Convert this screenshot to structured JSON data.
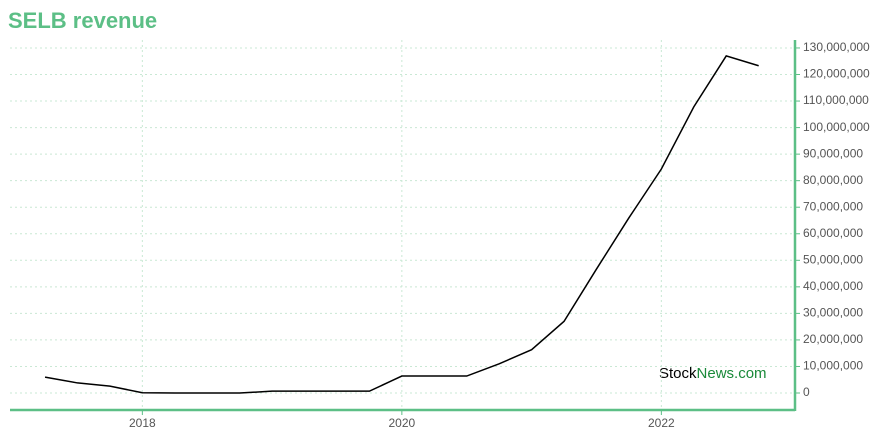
{
  "chart_data": {
    "type": "line",
    "title": "SELB revenue",
    "x": [
      2017.25,
      2017.5,
      2017.75,
      2018,
      2018.25,
      2018.5,
      2018.75,
      2019,
      2019.25,
      2019.5,
      2019.75,
      2020,
      2020.25,
      2020.5,
      2020.75,
      2021,
      2021.25,
      2021.5,
      2021.75,
      2022,
      2022.25,
      2022.5,
      2022.75
    ],
    "series": [
      {
        "color": "#000000",
        "values": [
          6000000,
          3800000,
          2600000,
          100000,
          0,
          0,
          0,
          700000,
          700000,
          700000,
          700000,
          6400000,
          6400000,
          6400000,
          11000000,
          16300000,
          27000000,
          46700000,
          66000000,
          84400000,
          107800000,
          127000000,
          123300000
        ]
      }
    ],
    "xlim": [
      2016.98,
      2023.03
    ],
    "xticks": [
      2018,
      2020,
      2022
    ],
    "ylim": [
      -6400000,
      133000000
    ],
    "yticks": [
      0,
      {
        "value": 10000000,
        "label": "10,000,000"
      },
      {
        "value": 20000000,
        "label": "20,000,000"
      },
      {
        "value": 30000000,
        "label": "30,000,000"
      },
      {
        "value": 40000000,
        "label": "40,000,000"
      },
      {
        "value": 50000000,
        "label": "50,000,000"
      },
      {
        "value": 60000000,
        "label": "60,000,000"
      },
      {
        "value": 70000000,
        "label": "70,000,000"
      },
      {
        "value": 80000000,
        "label": "80,000,000"
      },
      {
        "value": 90000000,
        "label": "90,000,000"
      },
      {
        "value": 100000000,
        "label": "100,000,000"
      },
      {
        "value": 110000000,
        "label": "110,000,000"
      },
      {
        "value": 120000000,
        "label": "120,000,000"
      },
      {
        "value": 130000000,
        "label": "130,000,000"
      }
    ],
    "grid": true,
    "axis_color": "#5cbf86",
    "watermark": [
      "Stock",
      "News.com"
    ]
  }
}
